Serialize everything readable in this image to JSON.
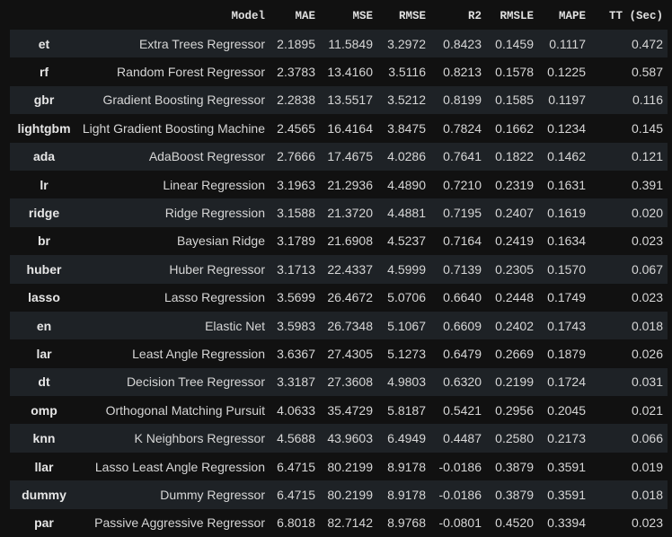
{
  "table": {
    "index_header": "",
    "columns": [
      "Model",
      "MAE",
      "MSE",
      "RMSE",
      "R2",
      "RMSLE",
      "MAPE",
      "TT (Sec)"
    ],
    "rows": [
      {
        "id": "et",
        "cells": [
          "Extra Trees Regressor",
          "2.1895",
          "11.5849",
          "3.2972",
          "0.8423",
          "0.1459",
          "0.1117",
          "0.472"
        ]
      },
      {
        "id": "rf",
        "cells": [
          "Random Forest Regressor",
          "2.3783",
          "13.4160",
          "3.5116",
          "0.8213",
          "0.1578",
          "0.1225",
          "0.587"
        ]
      },
      {
        "id": "gbr",
        "cells": [
          "Gradient Boosting Regressor",
          "2.2838",
          "13.5517",
          "3.5212",
          "0.8199",
          "0.1585",
          "0.1197",
          "0.116"
        ]
      },
      {
        "id": "lightgbm",
        "cells": [
          "Light Gradient Boosting Machine",
          "2.4565",
          "16.4164",
          "3.8475",
          "0.7824",
          "0.1662",
          "0.1234",
          "0.145"
        ]
      },
      {
        "id": "ada",
        "cells": [
          "AdaBoost Regressor",
          "2.7666",
          "17.4675",
          "4.0286",
          "0.7641",
          "0.1822",
          "0.1462",
          "0.121"
        ]
      },
      {
        "id": "lr",
        "cells": [
          "Linear Regression",
          "3.1963",
          "21.2936",
          "4.4890",
          "0.7210",
          "0.2319",
          "0.1631",
          "0.391"
        ]
      },
      {
        "id": "ridge",
        "cells": [
          "Ridge Regression",
          "3.1588",
          "21.3720",
          "4.4881",
          "0.7195",
          "0.2407",
          "0.1619",
          "0.020"
        ]
      },
      {
        "id": "br",
        "cells": [
          "Bayesian Ridge",
          "3.1789",
          "21.6908",
          "4.5237",
          "0.7164",
          "0.2419",
          "0.1634",
          "0.023"
        ]
      },
      {
        "id": "huber",
        "cells": [
          "Huber Regressor",
          "3.1713",
          "22.4337",
          "4.5999",
          "0.7139",
          "0.2305",
          "0.1570",
          "0.067"
        ]
      },
      {
        "id": "lasso",
        "cells": [
          "Lasso Regression",
          "3.5699",
          "26.4672",
          "5.0706",
          "0.6640",
          "0.2448",
          "0.1749",
          "0.023"
        ]
      },
      {
        "id": "en",
        "cells": [
          "Elastic Net",
          "3.5983",
          "26.7348",
          "5.1067",
          "0.6609",
          "0.2402",
          "0.1743",
          "0.018"
        ]
      },
      {
        "id": "lar",
        "cells": [
          "Least Angle Regression",
          "3.6367",
          "27.4305",
          "5.1273",
          "0.6479",
          "0.2669",
          "0.1879",
          "0.026"
        ]
      },
      {
        "id": "dt",
        "cells": [
          "Decision Tree Regressor",
          "3.3187",
          "27.3608",
          "4.9803",
          "0.6320",
          "0.2199",
          "0.1724",
          "0.031"
        ]
      },
      {
        "id": "omp",
        "cells": [
          "Orthogonal Matching Pursuit",
          "4.0633",
          "35.4729",
          "5.8187",
          "0.5421",
          "0.2956",
          "0.2045",
          "0.021"
        ]
      },
      {
        "id": "knn",
        "cells": [
          "K Neighbors Regressor",
          "4.5688",
          "43.9603",
          "6.4949",
          "0.4487",
          "0.2580",
          "0.2173",
          "0.066"
        ]
      },
      {
        "id": "llar",
        "cells": [
          "Lasso Least Angle Regression",
          "6.4715",
          "80.2199",
          "8.9178",
          "-0.0186",
          "0.3879",
          "0.3591",
          "0.019"
        ]
      },
      {
        "id": "dummy",
        "cells": [
          "Dummy Regressor",
          "6.4715",
          "80.2199",
          "8.9178",
          "-0.0186",
          "0.3879",
          "0.3591",
          "0.018"
        ]
      },
      {
        "id": "par",
        "cells": [
          "Passive Aggressive Regressor",
          "6.8018",
          "82.7142",
          "8.9768",
          "-0.0801",
          "0.4520",
          "0.3394",
          "0.023"
        ]
      }
    ]
  },
  "colors": {
    "background": "#111111",
    "row_stripe": "#1e2226",
    "text": "#d6d6d6"
  }
}
